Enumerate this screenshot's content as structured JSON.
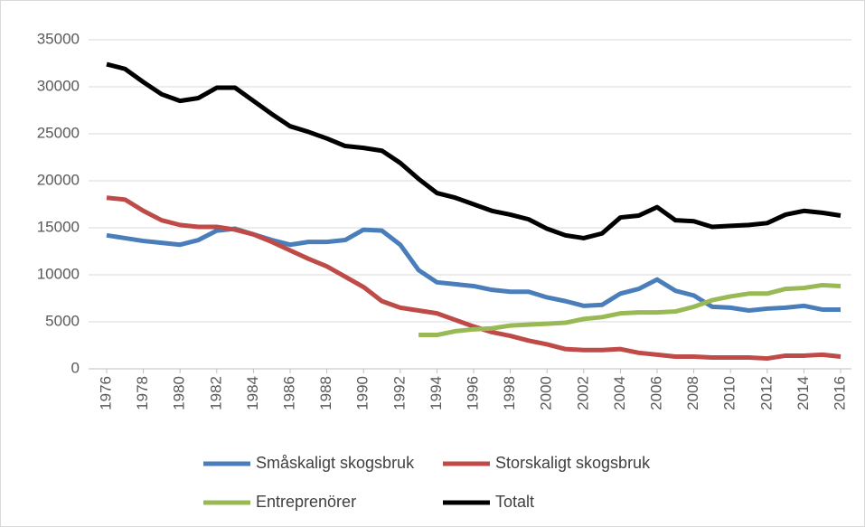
{
  "chart_data": {
    "type": "line",
    "x": [
      1976,
      1977,
      1978,
      1979,
      1980,
      1981,
      1982,
      1983,
      1984,
      1985,
      1986,
      1987,
      1988,
      1989,
      1990,
      1991,
      1992,
      1993,
      1994,
      1995,
      1996,
      1997,
      1998,
      1999,
      2000,
      2001,
      2002,
      2003,
      2004,
      2005,
      2006,
      2007,
      2008,
      2009,
      2010,
      2011,
      2012,
      2013,
      2014,
      2015,
      2016
    ],
    "xlim": [
      1976,
      2016
    ],
    "xticks": [
      1976,
      1978,
      1980,
      1982,
      1984,
      1986,
      1988,
      1990,
      1992,
      1994,
      1996,
      1998,
      2000,
      2002,
      2004,
      2006,
      2008,
      2010,
      2012,
      2014,
      2016
    ],
    "ylim": [
      0,
      35000
    ],
    "yticks": [
      0,
      5000,
      10000,
      15000,
      20000,
      25000,
      30000,
      35000
    ],
    "grid": true,
    "legend": "bottom",
    "series": [
      {
        "name": "Småskaligt skogsbruk",
        "color": "#4a7ebb",
        "values": [
          14200,
          13900,
          13600,
          13400,
          13200,
          13700,
          14700,
          14900,
          14300,
          13700,
          13200,
          13500,
          13500,
          13700,
          14800,
          14700,
          13200,
          10500,
          9200,
          9000,
          8800,
          8400,
          8200,
          8200,
          7600,
          7200,
          6700,
          6800,
          8000,
          8500,
          9500,
          8300,
          7800,
          6600,
          6500,
          6200,
          6400,
          6500,
          6700,
          6300,
          6300
        ]
      },
      {
        "name": "Storskaligt skogsbruk",
        "color": "#be4b48",
        "values": [
          18200,
          18000,
          16800,
          15800,
          15300,
          15100,
          15100,
          14800,
          14300,
          13500,
          12600,
          11700,
          10900,
          9800,
          8700,
          7200,
          6500,
          6200,
          5900,
          5200,
          4500,
          3900,
          3500,
          3000,
          2600,
          2100,
          2000,
          2000,
          2100,
          1700,
          1500,
          1300,
          1300,
          1200,
          1200,
          1200,
          1100,
          1400,
          1400,
          1500,
          1300
        ]
      },
      {
        "name": "Entreprenörer",
        "color": "#98b954",
        "values": [
          null,
          null,
          null,
          null,
          null,
          null,
          null,
          null,
          null,
          null,
          null,
          null,
          null,
          null,
          null,
          null,
          null,
          3600,
          3600,
          4000,
          4200,
          4300,
          4600,
          4700,
          4800,
          4900,
          5300,
          5500,
          5900,
          6000,
          6000,
          6100,
          6600,
          7300,
          7700,
          8000,
          8000,
          8500,
          8600,
          8900,
          8800
        ]
      },
      {
        "name": "Totalt",
        "color": "#000000",
        "values": [
          32400,
          31900,
          30500,
          29200,
          28500,
          28800,
          29900,
          29900,
          28500,
          27100,
          25800,
          25200,
          24500,
          23700,
          23500,
          23200,
          21900,
          20200,
          18700,
          18200,
          17500,
          16800,
          16400,
          15900,
          14900,
          14200,
          13900,
          14400,
          16100,
          16300,
          17200,
          15800,
          15700,
          15100,
          15200,
          15300,
          15500,
          16400,
          16800,
          16600,
          16300
        ]
      }
    ]
  }
}
